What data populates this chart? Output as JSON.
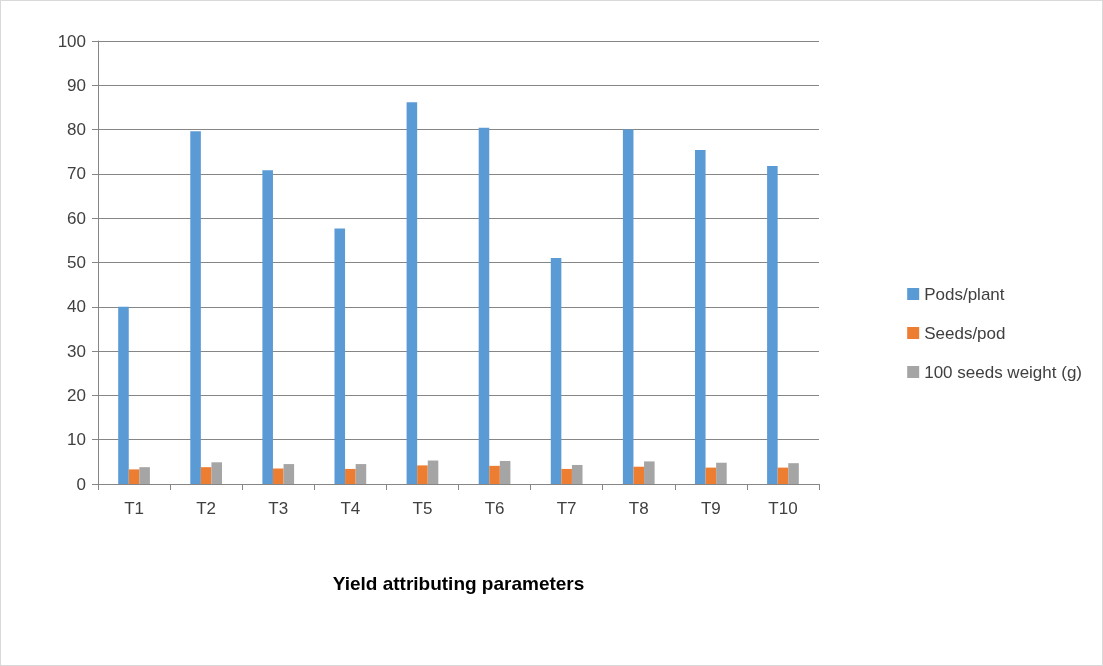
{
  "chart_data": {
    "type": "bar",
    "xlabel": "Yield attributing parameters",
    "categories": [
      "T1",
      "T2",
      "T3",
      "T4",
      "T5",
      "T6",
      "T7",
      "T8",
      "T9",
      "T10"
    ],
    "series": [
      {
        "name": "Pods/plant",
        "color": "#5b9bd5",
        "values": [
          40,
          79.6,
          70.8,
          57.7,
          86.2,
          80.4,
          51,
          80,
          75.4,
          71.8
        ]
      },
      {
        "name": "Seeds/pod",
        "color": "#ed7d31",
        "values": [
          3.3,
          3.8,
          3.5,
          3.4,
          4.2,
          4.1,
          3.4,
          3.9,
          3.7,
          3.7
        ]
      },
      {
        "name": "100 seeds weight (g)",
        "color": "#a5a5a5",
        "values": [
          3.8,
          4.9,
          4.5,
          4.5,
          5.3,
          5.2,
          4.3,
          5.1,
          4.8,
          4.7
        ]
      }
    ],
    "ylim": [
      0,
      100
    ],
    "yticks": [
      0,
      10,
      20,
      30,
      40,
      50,
      60,
      70,
      80,
      90,
      100
    ],
    "grid": "y",
    "legend": "right"
  }
}
